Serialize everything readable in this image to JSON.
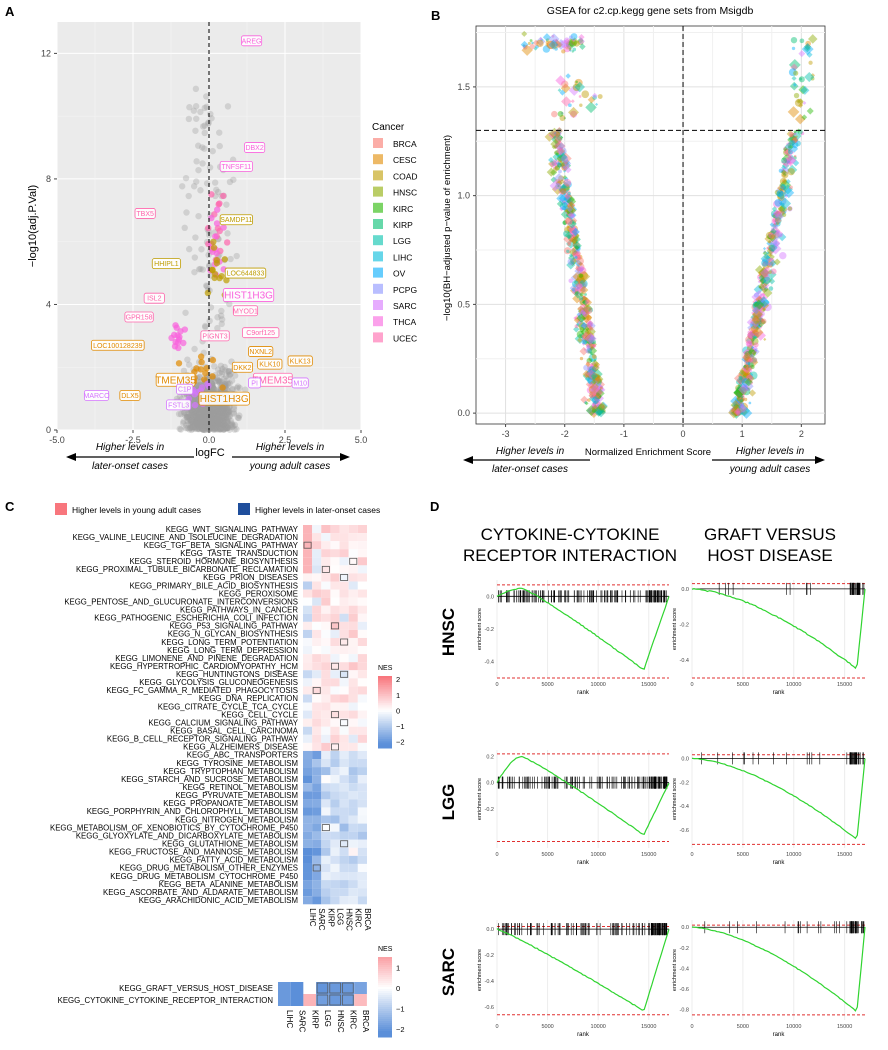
{
  "panels": {
    "a": {
      "letter": "A"
    },
    "b": {
      "letter": "B"
    },
    "c": {
      "letter": "C"
    },
    "d": {
      "letter": "D"
    }
  },
  "colors": {
    "BRCA": "#F8766D",
    "CESC": "#E18A00",
    "COAD": "#BE9C00",
    "HNSC": "#8CAB00",
    "KIRC": "#24B700",
    "KIRP": "#00BE70",
    "LGG": "#00C1AB",
    "LIHC": "#00BBDA",
    "OV": "#00ACFC",
    "PCPG": "#8B93FF",
    "SARC": "#D575FE",
    "THCA": "#F962DD",
    "UCEC": "#FF65AC",
    "grey": "#bdbdbd",
    "heat_high": "#f8767d",
    "heat_low": "#5b8fd9",
    "heat_mid": "#ffffff",
    "gsea_line": "#2fd42f",
    "gsea_bound": "#e03030"
  },
  "chart_data": [
    {
      "id": "volcano",
      "type": "scatter",
      "title": "",
      "xlabel": "logFC",
      "ylabel": "−log10(adj.P.Val)",
      "xlim": [
        -5,
        5
      ],
      "ylim": [
        0,
        13
      ],
      "xticks": [
        "-5.0",
        "-2.5",
        "0.0",
        "2.5",
        "5.0"
      ],
      "yticks": [
        "0",
        "4",
        "8",
        "12"
      ],
      "arrow_left": [
        "Higher levels in",
        "later-onset cases"
      ],
      "arrow_right": [
        "Higher levels in",
        "young adult cases"
      ],
      "legend_title": "Cancer",
      "legend": [
        "BRCA",
        "CESC",
        "COAD",
        "HNSC",
        "KIRC",
        "KIRP",
        "LGG",
        "LIHC",
        "OV",
        "PCPG",
        "SARC",
        "THCA",
        "UCEC"
      ],
      "labels": [
        {
          "text": "AREG",
          "x": 1.4,
          "y": 12.4,
          "c": "THCA"
        },
        {
          "text": "DBX2",
          "x": 1.5,
          "y": 9.0,
          "c": "THCA"
        },
        {
          "text": "TNFSF11",
          "x": 0.9,
          "y": 8.4,
          "c": "THCA"
        },
        {
          "text": "TBX5",
          "x": -2.1,
          "y": 6.9,
          "c": "UCEC"
        },
        {
          "text": "SAMDP11",
          "x": 0.9,
          "y": 6.7,
          "c": "COAD"
        },
        {
          "text": "HHIPL1",
          "x": -1.4,
          "y": 5.3,
          "c": "COAD"
        },
        {
          "text": "LOC644833",
          "x": 1.2,
          "y": 5.0,
          "c": "COAD"
        },
        {
          "text": "HIST1H3G",
          "x": 1.3,
          "y": 4.3,
          "c": "THCA",
          "big": true
        },
        {
          "text": "ISL2",
          "x": -1.8,
          "y": 4.2,
          "c": "UCEC"
        },
        {
          "text": "MYOD1",
          "x": 1.2,
          "y": 3.8,
          "c": "UCEC"
        },
        {
          "text": "GPR158",
          "x": -2.3,
          "y": 3.6,
          "c": "UCEC"
        },
        {
          "text": "PIGNT3",
          "x": 0.2,
          "y": 3.0,
          "c": "UCEC"
        },
        {
          "text": "C9orf125",
          "x": 1.7,
          "y": 3.1,
          "c": "UCEC"
        },
        {
          "text": "NXNL2",
          "x": 1.7,
          "y": 2.5,
          "c": "CESC"
        },
        {
          "text": "KLK13",
          "x": 3.0,
          "y": 2.2,
          "c": "CESC"
        },
        {
          "text": "KLK10",
          "x": 2.0,
          "y": 2.1,
          "c": "CESC"
        },
        {
          "text": "LOC100128239",
          "x": -3.0,
          "y": 2.7,
          "c": "CESC"
        },
        {
          "text": "DKK2",
          "x": 1.1,
          "y": 2.0,
          "c": "CESC"
        },
        {
          "text": "TMEM35",
          "x": -1.1,
          "y": 1.6,
          "c": "CESC",
          "big": true
        },
        {
          "text": "TMEM35",
          "x": 2.1,
          "y": 1.6,
          "c": "UCEC",
          "big": true
        },
        {
          "text": "MARCO",
          "x": -3.7,
          "y": 1.1,
          "c": "SARC"
        },
        {
          "text": "DLX5",
          "x": -2.6,
          "y": 1.1,
          "c": "CESC"
        },
        {
          "text": "C1P",
          "x": -0.8,
          "y": 1.3,
          "c": "SARC"
        },
        {
          "text": "HIST1H3G",
          "x": 0.5,
          "y": 1.0,
          "c": "CESC",
          "big": true
        },
        {
          "text": "FSTL3",
          "x": -1.0,
          "y": 0.8,
          "c": "SARC"
        },
        {
          "text": "PI",
          "x": 1.5,
          "y": 1.5,
          "c": "SARC"
        },
        {
          "text": "M10",
          "x": 3.0,
          "y": 1.5,
          "c": "SARC"
        }
      ]
    },
    {
      "id": "gsea_scatter",
      "type": "scatter",
      "title": "GSEA for c2.cp.kegg gene sets from Msigdb",
      "xlabel": "Normalized Enrichment Score",
      "ylabel": "−log10(BH−adjusted p−value of enrichment)",
      "xlim": [
        -3.5,
        2.4
      ],
      "ylim": [
        -0.05,
        1.78
      ],
      "xticks": [
        -3,
        -2,
        -1,
        0,
        1,
        2
      ],
      "yticks": [
        "0.0",
        "0.5",
        "1.0",
        "1.5"
      ],
      "threshold": 1.3,
      "arrow_left": [
        "Higher levels in",
        "later-onset cases"
      ],
      "arrow_right": [
        "Higher levels in",
        "young adult cases"
      ]
    },
    {
      "id": "heatmap_kegg",
      "type": "heatmap",
      "legend_high": "Higher levels in young adult cases",
      "legend_low": "Higher levels in later-onset cases",
      "columns": [
        "LIHC",
        "SARC",
        "KIRP",
        "LGG",
        "HNSC",
        "KIRC",
        "BRCA"
      ],
      "colorbar_title": "NES",
      "colorbar_ticks": [
        "2",
        "1",
        "0",
        "−1",
        "−2"
      ],
      "rows": [
        "KEGG_WNT_SIGNALING_PATHWAY",
        "KEGG_VALINE_LEUCINE_AND_ISOLEUCINE_DEGRADATION",
        "KEGG_TGF_BETA_SIGNALING_PATHWAY",
        "KEGG_TASTE_TRANSDUCTION",
        "KEGG_STEROID_HORMONE_BIOSYNTHESIS",
        "KEGG_PROXIMAL_TUBULE_BICARBONATE_RECLAMATION",
        "KEGG_PRION_DISEASES",
        "KEGG_PRIMARY_BILE_ACID_BIOSYNTHESIS",
        "KEGG_PEROXISOME",
        "KEGG_PENTOSE_AND_GLUCURONATE_INTERCONVERSIONS",
        "KEGG_PATHWAYS_IN_CANCER",
        "KEGG_PATHOGENIC_ESCHERICHIA_COLI_INFECTION",
        "KEGG_P53_SIGNALING_PATHWAY",
        "KEGG_N_GLYCAN_BIOSYNTHESIS",
        "KEGG_LONG_TERM_POTENTIATION",
        "KEGG_LONG_TERM_DEPRESSION",
        "KEGG_LIMONENE_AND_PINENE_DEGRADATION",
        "KEGG_HYPERTROPHIC_CARDIOMYOPATHY_HCM",
        "KEGG_HUNTINGTONS_DISEASE",
        "KEGG_GLYCOLYSIS_GLUCONEOGENESIS",
        "KEGG_FC_GAMMA_R_MEDIATED_PHAGOCYTOSIS",
        "KEGG_DNA_REPLICATION",
        "KEGG_CITRATE_CYCLE_TCA_CYCLE",
        "KEGG_CELL_CYCLE",
        "KEGG_CALCIUM_SIGNALING_PATHWAY",
        "KEGG_BASAL_CELL_CARCINOMA",
        "KEGG_B_CELL_RECEPTOR_SIGNALING_PATHWAY",
        "KEGG_ALZHEIMERS_DISEASE",
        "KEGG_ABC_TRANSPORTERS",
        "KEGG_TYROSINE_METABOLISM",
        "KEGG_TRYPTOPHAN_METABOLISM",
        "KEGG_STARCH_AND_SUCROSE_METABOLISM",
        "KEGG_RETINOL_METABOLISM",
        "KEGG_PYRUVATE_METABOLISM",
        "KEGG_PROPANOATE_METABOLISM",
        "KEGG_PORPHYRIN_AND_CHLOROPHYLL_METABOLISM",
        "KEGG_NITROGEN_METABOLISM",
        "KEGG_METABOLISM_OF_XENOBIOTICS_BY_CYTOCHROME_P450",
        "KEGG_GLYOXYLATE_AND_DICARBOXYLATE_METABOLISM",
        "KEGG_GLUTATHIONE_METABOLISM",
        "KEGG_FRUCTOSE_AND_MANNOSE_METABOLISM",
        "KEGG_FATTY_ACID_METABOLISM",
        "KEGG_DRUG_METABOLISM_OTHER_ENZYMES",
        "KEGG_DRUG_METABOLISM_CYTOCHROME_P450",
        "KEGG_BETA_ALANINE_METABOLISM",
        "KEGG_ASCORBATE_AND_ALDARATE_METABOLISM",
        "KEGG_ARACHIDONIC_ACID_METABOLISM"
      ]
    },
    {
      "id": "heatmap_small",
      "type": "heatmap",
      "columns": [
        "LIHC",
        "SARC",
        "KIRP",
        "LGG",
        "HNSC",
        "KIRC",
        "BRCA"
      ],
      "colorbar_title": "NES",
      "colorbar_ticks": [
        "1",
        "0",
        "−1",
        "−2"
      ],
      "rows": [
        "KEGG_GRAFT_VERSUS_HOST_DISEASE",
        "KEGG_CYTOKINE_CYTOKINE_RECEPTOR_INTERACTION"
      ],
      "values": [
        [
          -2.0,
          -2.2,
          0.0,
          -2.1,
          -2.0,
          -2.0,
          -1.8
        ],
        [
          -2.0,
          -2.3,
          1.2,
          -1.9,
          -2.0,
          -1.9,
          1.1
        ]
      ]
    },
    {
      "id": "gsea_curves",
      "type": "line",
      "columns": [
        [
          "CYTOKINE-CYTOKINE",
          "RECEPTOR INTERACTION"
        ],
        [
          "GRAFT VERSUS",
          "HOST DISEASE"
        ]
      ],
      "rows": [
        "HNSC",
        "LGG",
        "SARC"
      ],
      "xlabel": "rank",
      "ylabel": "enrichment score",
      "xticks": [
        "0",
        "5000",
        "10000",
        "15000"
      ],
      "yticks": [
        [
          [
            "0.0",
            "-0.2",
            "-0.4"
          ],
          [
            "0.0",
            "-0.2",
            "-0.4"
          ]
        ],
        [
          [
            "0.2",
            "0.0",
            "-0.2"
          ],
          [
            "0.0",
            "-0.2",
            "-0.4",
            "-0.6"
          ]
        ],
        [
          [
            "0.0",
            "-0.2",
            "-0.4",
            "-0.6"
          ],
          [
            "0.0",
            "-0.2",
            "-0.4",
            "-0.6",
            "-0.8"
          ]
        ]
      ],
      "curves": [
        [
          {
            "min": -0.45,
            "max": 0.05,
            "peak": 0.05,
            "trough": -0.45,
            "lo": -0.5,
            "hi": 0.07
          },
          {
            "min": -0.45,
            "max": 0.0,
            "peak": 0.0,
            "trough": -0.45,
            "lo": -0.5,
            "hi": 0.03
          }
        ],
        [
          {
            "min": -0.45,
            "max": 0.2,
            "peak": 0.2,
            "trough": -0.4,
            "lo": -0.45,
            "hi": 0.22
          },
          {
            "min": -0.7,
            "max": 0.02,
            "peak": 0.0,
            "trough": -0.68,
            "lo": -0.72,
            "hi": 0.03
          }
        ],
        [
          {
            "min": -0.65,
            "max": 0.02,
            "peak": 0.0,
            "trough": -0.63,
            "lo": -0.66,
            "hi": 0.02
          },
          {
            "min": -0.85,
            "max": 0.02,
            "peak": 0.0,
            "trough": -0.82,
            "lo": -0.85,
            "hi": 0.02
          }
        ]
      ]
    }
  ]
}
